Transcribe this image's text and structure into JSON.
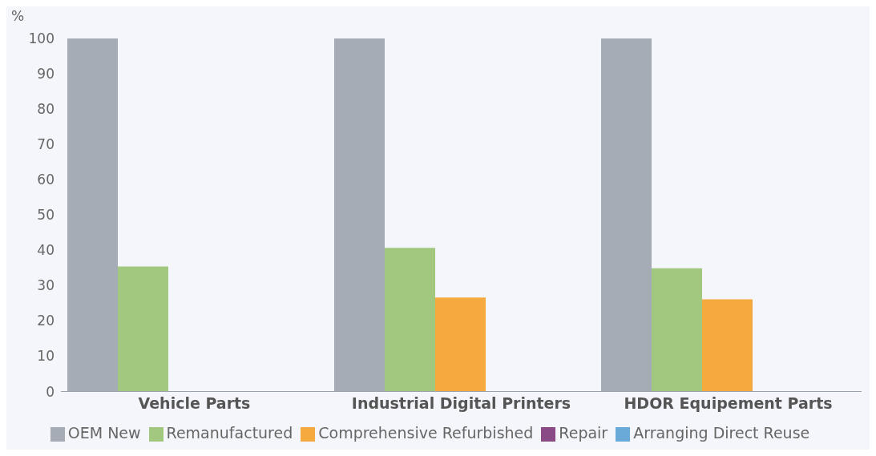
{
  "chart_data": {
    "type": "bar",
    "ylabel": "%",
    "categories": [
      "Vehicle Parts",
      "Industrial Digital Printers",
      "HDOR Equipement Parts"
    ],
    "series": [
      {
        "name": "OEM New",
        "color": "#a5acb5",
        "values": [
          100,
          100,
          100
        ]
      },
      {
        "name": "Remanufactured",
        "color": "#a2c77f",
        "values": [
          35.4,
          40.7,
          34.9
        ]
      },
      {
        "name": "Comprehensive Refurbished",
        "color": "#f5a93f",
        "values": [
          null,
          26.6,
          26.1
        ]
      },
      {
        "name": "Repair",
        "color": "#8a4a86",
        "values": [
          null,
          null,
          null
        ]
      },
      {
        "name": "Arranging Direct Reuse",
        "color": "#6aaad8",
        "values": [
          null,
          null,
          null
        ]
      }
    ],
    "ylim": [
      0,
      100
    ],
    "yticks": [
      0,
      10,
      20,
      30,
      40,
      50,
      60,
      70,
      80,
      90,
      100
    ],
    "grid": false,
    "legend": "bottom"
  }
}
